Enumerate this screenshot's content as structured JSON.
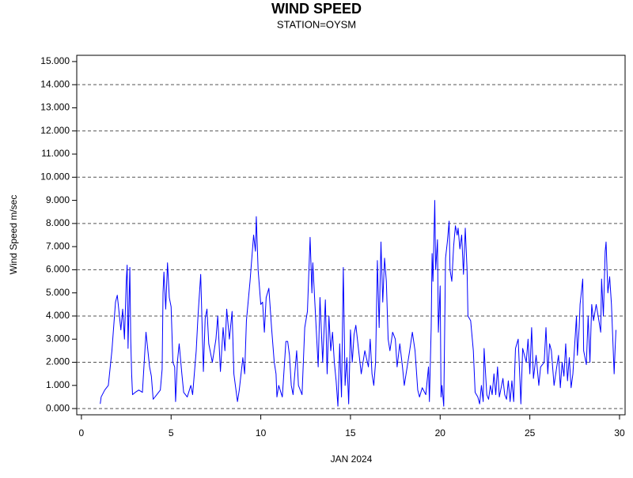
{
  "chart_data": {
    "type": "line",
    "title": "WIND SPEED",
    "subtitle": "STATION=OYSM",
    "ylabel": "Wind Speed m/sec",
    "xlabel": "JAN 2024",
    "xlim": [
      -0.26,
      30.31
    ],
    "xticks": [
      0,
      5,
      10,
      15,
      20,
      25,
      30
    ],
    "ylim": [
      -0.27,
      15.27
    ],
    "yticks": [
      {
        "value": 0,
        "label": "0.000"
      },
      {
        "value": 1,
        "label": "1.000"
      },
      {
        "value": 2,
        "label": "2.000"
      },
      {
        "value": 3,
        "label": "3.000"
      },
      {
        "value": 4,
        "label": "4.000"
      },
      {
        "value": 5,
        "label": "5.000"
      },
      {
        "value": 6,
        "label": "6.000"
      },
      {
        "value": 7,
        "label": "7.000"
      },
      {
        "value": 8,
        "label": "8.000"
      },
      {
        "value": 9,
        "label": "9.000"
      },
      {
        "value": 10,
        "label": "10.000"
      },
      {
        "value": 11,
        "label": "11.000"
      },
      {
        "value": 12,
        "label": "12.000"
      },
      {
        "value": 13,
        "label": "13.000"
      },
      {
        "value": 14,
        "label": "14.000"
      },
      {
        "value": 15,
        "label": "15.000"
      }
    ],
    "ygrid": [
      0,
      2,
      4,
      6,
      8,
      10,
      12,
      14
    ],
    "x": [
      1.05,
      1.1,
      1.3,
      1.5,
      1.7,
      1.9,
      2.0,
      2.2,
      2.3,
      2.4,
      2.5,
      2.55,
      2.6,
      2.7,
      2.75,
      2.8,
      2.85,
      3.0,
      3.2,
      3.4,
      3.6,
      3.8,
      3.9,
      4.0,
      4.2,
      4.4,
      4.5,
      4.55,
      4.6,
      4.7,
      4.8,
      4.9,
      5.0,
      5.1,
      5.2,
      5.25,
      5.35,
      5.45,
      5.6,
      5.7,
      5.9,
      6.1,
      6.2,
      6.4,
      6.5,
      6.65,
      6.8,
      6.9,
      7.0,
      7.1,
      7.3,
      7.5,
      7.6,
      7.75,
      7.9,
      8.0,
      8.1,
      8.25,
      8.4,
      8.5,
      8.7,
      8.8,
      9.0,
      9.1,
      9.2,
      9.4,
      9.6,
      9.7,
      9.75,
      9.85,
      10.0,
      10.1,
      10.2,
      10.3,
      10.45,
      10.6,
      10.75,
      10.85,
      10.9,
      11.0,
      11.2,
      11.4,
      11.5,
      11.6,
      11.7,
      11.8,
      12.0,
      12.1,
      12.3,
      12.45,
      12.6,
      12.75,
      12.85,
      12.9,
      13.0,
      13.2,
      13.3,
      13.45,
      13.6,
      13.7,
      13.8,
      13.9,
      14.0,
      14.1,
      14.2,
      14.3,
      14.4,
      14.5,
      14.6,
      14.7,
      14.8,
      14.9,
      15.0,
      15.1,
      15.2,
      15.3,
      15.5,
      15.6,
      15.8,
      16.0,
      16.1,
      16.2,
      16.3,
      16.4,
      16.5,
      16.6,
      16.7,
      16.8,
      16.9,
      17.0,
      17.1,
      17.2,
      17.35,
      17.5,
      17.6,
      17.75,
      17.9,
      18.0,
      18.1,
      18.3,
      18.45,
      18.6,
      18.75,
      18.85,
      19.0,
      19.2,
      19.35,
      19.4,
      19.5,
      19.55,
      19.6,
      19.7,
      19.75,
      19.85,
      19.9,
      20.0,
      20.05,
      20.1,
      20.2,
      20.3,
      20.4,
      20.5,
      20.55,
      20.65,
      20.75,
      20.85,
      20.95,
      21.0,
      21.1,
      21.2,
      21.3,
      21.4,
      21.5,
      21.55,
      21.7,
      21.85,
      21.95,
      22.1,
      22.2,
      22.3,
      22.4,
      22.45,
      22.6,
      22.7,
      22.8,
      22.9,
      23.0,
      23.1,
      23.2,
      23.3,
      23.5,
      23.6,
      23.7,
      23.8,
      23.9,
      24.0,
      24.1,
      24.2,
      24.35,
      24.45,
      24.5,
      24.6,
      24.8,
      24.9,
      25.0,
      25.1,
      25.2,
      25.35,
      25.5,
      25.6,
      25.8,
      25.9,
      26.0,
      26.1,
      26.2,
      26.35,
      26.5,
      26.6,
      26.7,
      26.8,
      26.9,
      27.0,
      27.1,
      27.2,
      27.3,
      27.4,
      27.6,
      27.65,
      27.75,
      27.8,
      27.95,
      28.0,
      28.15,
      28.25,
      28.35,
      28.45,
      28.55,
      28.7,
      28.85,
      28.95,
      29.0,
      29.1,
      29.2,
      29.25,
      29.35,
      29.45,
      29.55,
      29.7,
      29.75,
      29.8
    ],
    "series": [
      {
        "color": "#0000ff",
        "values": [
          0.2,
          0.5,
          0.8,
          1.0,
          2.5,
          4.6,
          4.9,
          3.4,
          4.3,
          3.0,
          5.5,
          6.2,
          2.6,
          6.1,
          3.0,
          1.5,
          0.6,
          0.7,
          0.8,
          0.7,
          3.3,
          1.8,
          1.4,
          0.4,
          0.6,
          0.8,
          1.7,
          5.0,
          5.9,
          4.3,
          6.3,
          4.8,
          4.4,
          2.0,
          1.8,
          0.3,
          2.0,
          2.8,
          1.5,
          0.7,
          0.5,
          1.0,
          0.6,
          2.5,
          4.0,
          5.8,
          1.6,
          3.9,
          4.3,
          2.8,
          2.0,
          3.0,
          4.0,
          1.6,
          3.5,
          2.5,
          4.3,
          3.0,
          4.2,
          1.5,
          0.3,
          0.8,
          2.2,
          1.5,
          3.8,
          5.5,
          7.5,
          6.8,
          8.3,
          6.0,
          4.5,
          4.6,
          3.3,
          4.8,
          5.2,
          3.5,
          2.0,
          1.5,
          0.5,
          1.0,
          0.5,
          2.9,
          2.9,
          2.3,
          1.0,
          0.6,
          2.5,
          1.0,
          0.6,
          3.5,
          4.2,
          7.4,
          5.0,
          6.3,
          4.8,
          1.8,
          4.8,
          2.0,
          4.7,
          1.5,
          4.0,
          2.5,
          3.3,
          2.0,
          1.2,
          0.1,
          2.8,
          0.5,
          6.1,
          1.0,
          2.2,
          0.2,
          3.4,
          2.0,
          3.2,
          3.6,
          2.2,
          1.5,
          2.5,
          1.8,
          3.0,
          1.5,
          1.0,
          2.0,
          6.4,
          3.5,
          7.2,
          4.6,
          6.5,
          5.5,
          3.0,
          2.5,
          3.3,
          3.0,
          1.8,
          2.8,
          1.8,
          1.0,
          1.5,
          2.5,
          3.3,
          2.5,
          0.8,
          0.5,
          0.9,
          0.6,
          1.8,
          0.3,
          3.5,
          6.7,
          5.5,
          9.0,
          6.0,
          7.3,
          3.3,
          5.3,
          0.5,
          1.0,
          0.1,
          6.5,
          7.2,
          8.1,
          6.0,
          5.5,
          7.0,
          7.9,
          7.5,
          7.8,
          6.9,
          7.5,
          5.8,
          7.8,
          6.0,
          4.0,
          3.8,
          2.5,
          0.7,
          0.5,
          0.2,
          1.0,
          0.3,
          2.6,
          0.6,
          0.4,
          1.0,
          0.6,
          1.5,
          0.6,
          1.8,
          0.5,
          1.3,
          0.6,
          0.4,
          1.2,
          0.3,
          1.2,
          0.3,
          2.6,
          3.0,
          1.2,
          0.2,
          2.6,
          2.0,
          3.0,
          1.5,
          3.5,
          1.3,
          2.3,
          1.0,
          1.8,
          2.0,
          3.5,
          1.5,
          2.8,
          2.5,
          1.0,
          1.8,
          2.3,
          0.9,
          2.0,
          1.4,
          2.8,
          1.2,
          2.2,
          0.9,
          1.5,
          4.0,
          2.3,
          3.5,
          4.5,
          5.6,
          2.5,
          1.9,
          4.0,
          2.0,
          4.5,
          3.8,
          4.5,
          3.8,
          3.3,
          5.6,
          4.0,
          6.8,
          7.2,
          5.0,
          5.7,
          4.5,
          1.5,
          2.5,
          3.4
        ]
      }
    ]
  }
}
